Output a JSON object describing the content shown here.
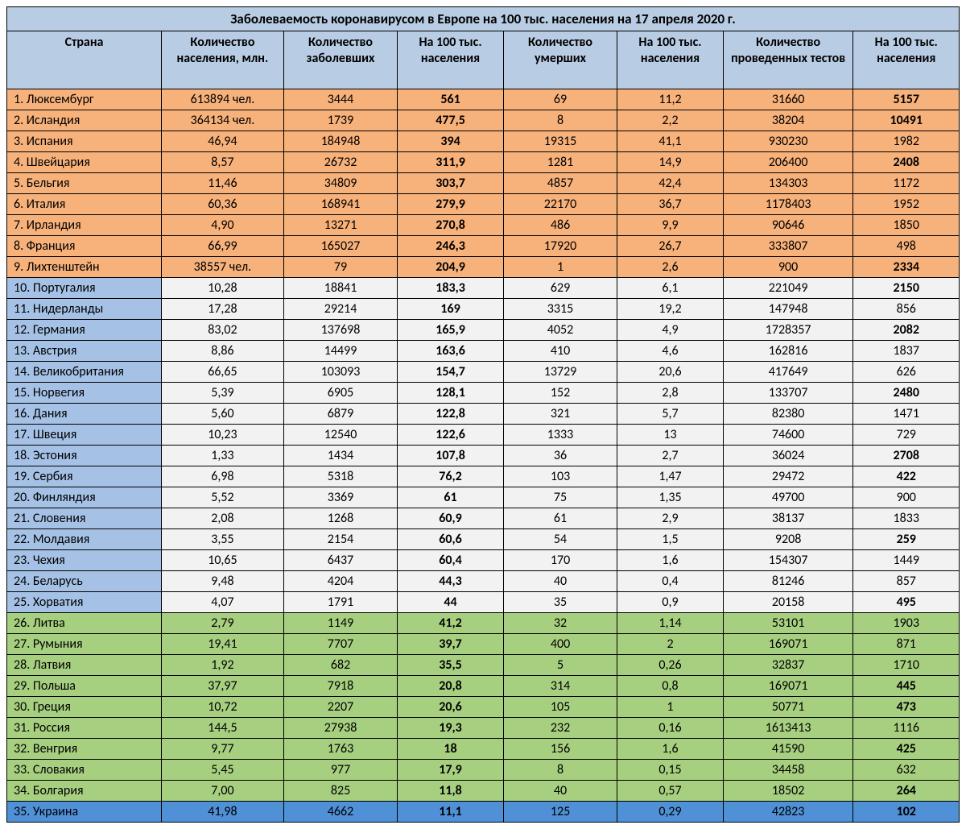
{
  "title": "Заболеваемость коронавирусом в Европе на 100 тыс. населения на 17 апреля 2020 г.",
  "header_bg": "#b8cce4",
  "columns": [
    "Страна",
    "Количество населения, млн.",
    "Количество заболевших",
    "На 100 тыс. населения",
    "Количество умерших",
    "На 100 тыс. населения",
    "Количество проведенных тестов",
    "На 100 тыс. населения"
  ],
  "band_colors": {
    "orange": "#f7b17a",
    "blue_label": "#a5c2e6",
    "white_data": "#f2f2f2",
    "green": "#a7cf80",
    "deep_blue": "#4f90d6"
  },
  "rows": [
    {
      "rank": "1.",
      "country": "Люксембург",
      "pop": "613894 чел.",
      "cases": "3444",
      "cases_per": "561",
      "cases_per_bold": true,
      "deaths": "69",
      "deaths_per": "11,2",
      "tests": "31660",
      "tests_per": "5157",
      "tests_per_bold": true,
      "band": "orange"
    },
    {
      "rank": "2.",
      "country": "Исландия",
      "pop": "364134 чел.",
      "cases": "1739",
      "cases_per": "477,5",
      "cases_per_bold": true,
      "deaths": "8",
      "deaths_per": "2,2",
      "tests": "38204",
      "tests_per": "10491",
      "tests_per_bold": true,
      "band": "orange"
    },
    {
      "rank": "3.",
      "country": "Испания",
      "pop": "46,94",
      "cases": "184948",
      "cases_per": "394",
      "cases_per_bold": true,
      "deaths": "19315",
      "deaths_per": "41,1",
      "tests": "930230",
      "tests_per": "1982",
      "tests_per_bold": false,
      "band": "orange"
    },
    {
      "rank": "4.",
      "country": "Швейцария",
      "pop": "8,57",
      "cases": "26732",
      "cases_per": "311,9",
      "cases_per_bold": true,
      "deaths": "1281",
      "deaths_per": "14,9",
      "tests": "206400",
      "tests_per": "2408",
      "tests_per_bold": true,
      "band": "orange"
    },
    {
      "rank": "5.",
      "country": "Бельгия",
      "pop": "11,46",
      "cases": "34809",
      "cases_per": "303,7",
      "cases_per_bold": true,
      "deaths": "4857",
      "deaths_per": "42,4",
      "tests": "134303",
      "tests_per": "1172",
      "tests_per_bold": false,
      "band": "orange"
    },
    {
      "rank": "6.",
      "country": "Италия",
      "pop": "60,36",
      "cases": "168941",
      "cases_per": "279,9",
      "cases_per_bold": true,
      "deaths": "22170",
      "deaths_per": "36,7",
      "tests": "1178403",
      "tests_per": "1952",
      "tests_per_bold": false,
      "band": "orange"
    },
    {
      "rank": "7.",
      "country": "Ирландия",
      "pop": "4,90",
      "cases": "13271",
      "cases_per": "270,8",
      "cases_per_bold": true,
      "deaths": "486",
      "deaths_per": "9,9",
      "tests": "90646",
      "tests_per": "1850",
      "tests_per_bold": false,
      "band": "orange"
    },
    {
      "rank": "8.",
      "country": "Франция",
      "pop": "66,99",
      "cases": "165027",
      "cases_per": "246,3",
      "cases_per_bold": true,
      "deaths": "17920",
      "deaths_per": "26,7",
      "tests": "333807",
      "tests_per": "498",
      "tests_per_bold": false,
      "band": "orange"
    },
    {
      "rank": "9.",
      "country": "Лихтенштейн",
      "pop": "38557 чел.",
      "cases": "79",
      "cases_per": "204,9",
      "cases_per_bold": true,
      "deaths": "1",
      "deaths_per": "2,6",
      "tests": "900",
      "tests_per": "2334",
      "tests_per_bold": true,
      "band": "orange"
    },
    {
      "rank": "10.",
      "country": "Португалия",
      "pop": "10,28",
      "cases": "18841",
      "cases_per": "183,3",
      "cases_per_bold": true,
      "deaths": "629",
      "deaths_per": "6,1",
      "tests": "221049",
      "tests_per": "2150",
      "tests_per_bold": true,
      "band": "white"
    },
    {
      "rank": "11.",
      "country": "Нидерланды",
      "pop": "17,28",
      "cases": "29214",
      "cases_per": "169",
      "cases_per_bold": true,
      "deaths": "3315",
      "deaths_per": "19,2",
      "tests": "147948",
      "tests_per": "856",
      "tests_per_bold": false,
      "band": "white"
    },
    {
      "rank": "12.",
      "country": "Германия",
      "pop": "83,02",
      "cases": "137698",
      "cases_per": "165,9",
      "cases_per_bold": true,
      "deaths": "4052",
      "deaths_per": "4,9",
      "tests": "1728357",
      "tests_per": "2082",
      "tests_per_bold": true,
      "band": "white"
    },
    {
      "rank": "13.",
      "country": "Австрия",
      "pop": "8,86",
      "cases": "14499",
      "cases_per": "163,6",
      "cases_per_bold": true,
      "deaths": "410",
      "deaths_per": "4,6",
      "tests": "162816",
      "tests_per": "1837",
      "tests_per_bold": false,
      "band": "white"
    },
    {
      "rank": "14.",
      "country": "Великобритания",
      "pop": "66,65",
      "cases": "103093",
      "cases_per": "154,7",
      "cases_per_bold": true,
      "deaths": "13729",
      "deaths_per": "20,6",
      "tests": "417649",
      "tests_per": "626",
      "tests_per_bold": false,
      "band": "white"
    },
    {
      "rank": "15.",
      "country": "Норвегия",
      "pop": "5,39",
      "cases": "6905",
      "cases_per": "128,1",
      "cases_per_bold": true,
      "deaths": "152",
      "deaths_per": "2,8",
      "tests": "133707",
      "tests_per": "2480",
      "tests_per_bold": true,
      "band": "white"
    },
    {
      "rank": "16.",
      "country": "Дания",
      "pop": "5,60",
      "cases": "6879",
      "cases_per": "122,8",
      "cases_per_bold": true,
      "deaths": "321",
      "deaths_per": "5,7",
      "tests": "82380",
      "tests_per": "1471",
      "tests_per_bold": false,
      "band": "white"
    },
    {
      "rank": "17.",
      "country": "Швеция",
      "pop": "10,23",
      "cases": "12540",
      "cases_per": "122,6",
      "cases_per_bold": true,
      "deaths": "1333",
      "deaths_per": "13",
      "tests": "74600",
      "tests_per": "729",
      "tests_per_bold": false,
      "band": "white"
    },
    {
      "rank": "18.",
      "country": "Эстония",
      "pop": "1,33",
      "cases": "1434",
      "cases_per": "107,8",
      "cases_per_bold": true,
      "deaths": "36",
      "deaths_per": "2,7",
      "tests": "36024",
      "tests_per": "2708",
      "tests_per_bold": true,
      "band": "white"
    },
    {
      "rank": "19.",
      "country": "Сербия",
      "pop": "6,98",
      "cases": "5318",
      "cases_per": "76,2",
      "cases_per_bold": true,
      "deaths": "103",
      "deaths_per": "1,47",
      "tests": "29472",
      "tests_per": "422",
      "tests_per_bold": true,
      "band": "white"
    },
    {
      "rank": "20.",
      "country": "Финляндия",
      "pop": "5,52",
      "cases": "3369",
      "cases_per": "61",
      "cases_per_bold": true,
      "deaths": "75",
      "deaths_per": "1,35",
      "tests": "49700",
      "tests_per": "900",
      "tests_per_bold": false,
      "band": "white"
    },
    {
      "rank": "21.",
      "country": "Словения",
      "pop": "2,08",
      "cases": "1268",
      "cases_per": "60,9",
      "cases_per_bold": true,
      "deaths": "61",
      "deaths_per": "2,9",
      "tests": "38137",
      "tests_per": "1833",
      "tests_per_bold": false,
      "band": "white"
    },
    {
      "rank": "22.",
      "country": "Молдавия",
      "pop": "3,55",
      "cases": "2154",
      "cases_per": "60,6",
      "cases_per_bold": true,
      "deaths": "54",
      "deaths_per": "1,5",
      "tests": "9208",
      "tests_per": "259",
      "tests_per_bold": true,
      "band": "white"
    },
    {
      "rank": "23.",
      "country": "Чехия",
      "pop": "10,65",
      "cases": "6437",
      "cases_per": "60,4",
      "cases_per_bold": true,
      "deaths": "170",
      "deaths_per": "1,6",
      "tests": "154307",
      "tests_per": "1449",
      "tests_per_bold": false,
      "band": "white"
    },
    {
      "rank": "24.",
      "country": "Беларусь",
      "pop": "9,48",
      "cases": "4204",
      "cases_per": "44,3",
      "cases_per_bold": true,
      "deaths": "40",
      "deaths_per": "0,4",
      "tests": "81246",
      "tests_per": "857",
      "tests_per_bold": false,
      "band": "white"
    },
    {
      "rank": "25.",
      "country": "Хорватия",
      "pop": "4,07",
      "cases": "1791",
      "cases_per": "44",
      "cases_per_bold": true,
      "deaths": "35",
      "deaths_per": "0,9",
      "tests": "20158",
      "tests_per": "495",
      "tests_per_bold": true,
      "band": "white"
    },
    {
      "rank": "26.",
      "country": "Литва",
      "pop": "2,79",
      "cases": "1149",
      "cases_per": "41,2",
      "cases_per_bold": true,
      "deaths": "32",
      "deaths_per": "1,14",
      "tests": "53101",
      "tests_per": "1903",
      "tests_per_bold": false,
      "band": "green"
    },
    {
      "rank": "27.",
      "country": "Румыния",
      "pop": "19,41",
      "cases": "7707",
      "cases_per": "39,7",
      "cases_per_bold": true,
      "deaths": "400",
      "deaths_per": "2",
      "tests": "169071",
      "tests_per": "871",
      "tests_per_bold": false,
      "band": "green"
    },
    {
      "rank": "28.",
      "country": "Латвия",
      "pop": "1,92",
      "cases": "682",
      "cases_per": "35,5",
      "cases_per_bold": true,
      "deaths": "5",
      "deaths_per": "0,26",
      "tests": "32837",
      "tests_per": "1710",
      "tests_per_bold": false,
      "band": "green"
    },
    {
      "rank": "29.",
      "country": "Польша",
      "pop": "37,97",
      "cases": "7918",
      "cases_per": "20,8",
      "cases_per_bold": true,
      "deaths": "314",
      "deaths_per": "0,8",
      "tests": "169071",
      "tests_per": "445",
      "tests_per_bold": true,
      "band": "green"
    },
    {
      "rank": "30.",
      "country": "Греция",
      "pop": "10,72",
      "cases": "2207",
      "cases_per": "20,6",
      "cases_per_bold": true,
      "deaths": "105",
      "deaths_per": "1",
      "tests": "50771",
      "tests_per": "473",
      "tests_per_bold": true,
      "band": "green"
    },
    {
      "rank": "31.",
      "country": "Россия",
      "pop": "144,5",
      "cases": "27938",
      "cases_per": "19,3",
      "cases_per_bold": true,
      "deaths": "232",
      "deaths_per": "0,16",
      "tests": "1613413",
      "tests_per": "1116",
      "tests_per_bold": false,
      "band": "green"
    },
    {
      "rank": "32.",
      "country": "Венгрия",
      "pop": "9,77",
      "cases": "1763",
      "cases_per": "18",
      "cases_per_bold": true,
      "deaths": "156",
      "deaths_per": "1,6",
      "tests": "41590",
      "tests_per": "425",
      "tests_per_bold": true,
      "band": "green"
    },
    {
      "rank": "33.",
      "country": "Словакия",
      "pop": "5,45",
      "cases": "977",
      "cases_per": "17,9",
      "cases_per_bold": true,
      "deaths": "8",
      "deaths_per": "0,15",
      "tests": "34458",
      "tests_per": "632",
      "tests_per_bold": false,
      "band": "green"
    },
    {
      "rank": "34.",
      "country": "Болгария",
      "pop": "7,00",
      "cases": "825",
      "cases_per": "11,8",
      "cases_per_bold": true,
      "deaths": "40",
      "deaths_per": "0,57",
      "tests": "18502",
      "tests_per": "264",
      "tests_per_bold": true,
      "band": "green"
    },
    {
      "rank": "35.",
      "country": "Украина",
      "pop": "41,98",
      "cases": "4662",
      "cases_per": "11,1",
      "cases_per_bold": true,
      "deaths": "125",
      "deaths_per": "0,29",
      "tests": "42823",
      "tests_per": "102",
      "tests_per_bold": true,
      "band": "deep_blue"
    }
  ]
}
